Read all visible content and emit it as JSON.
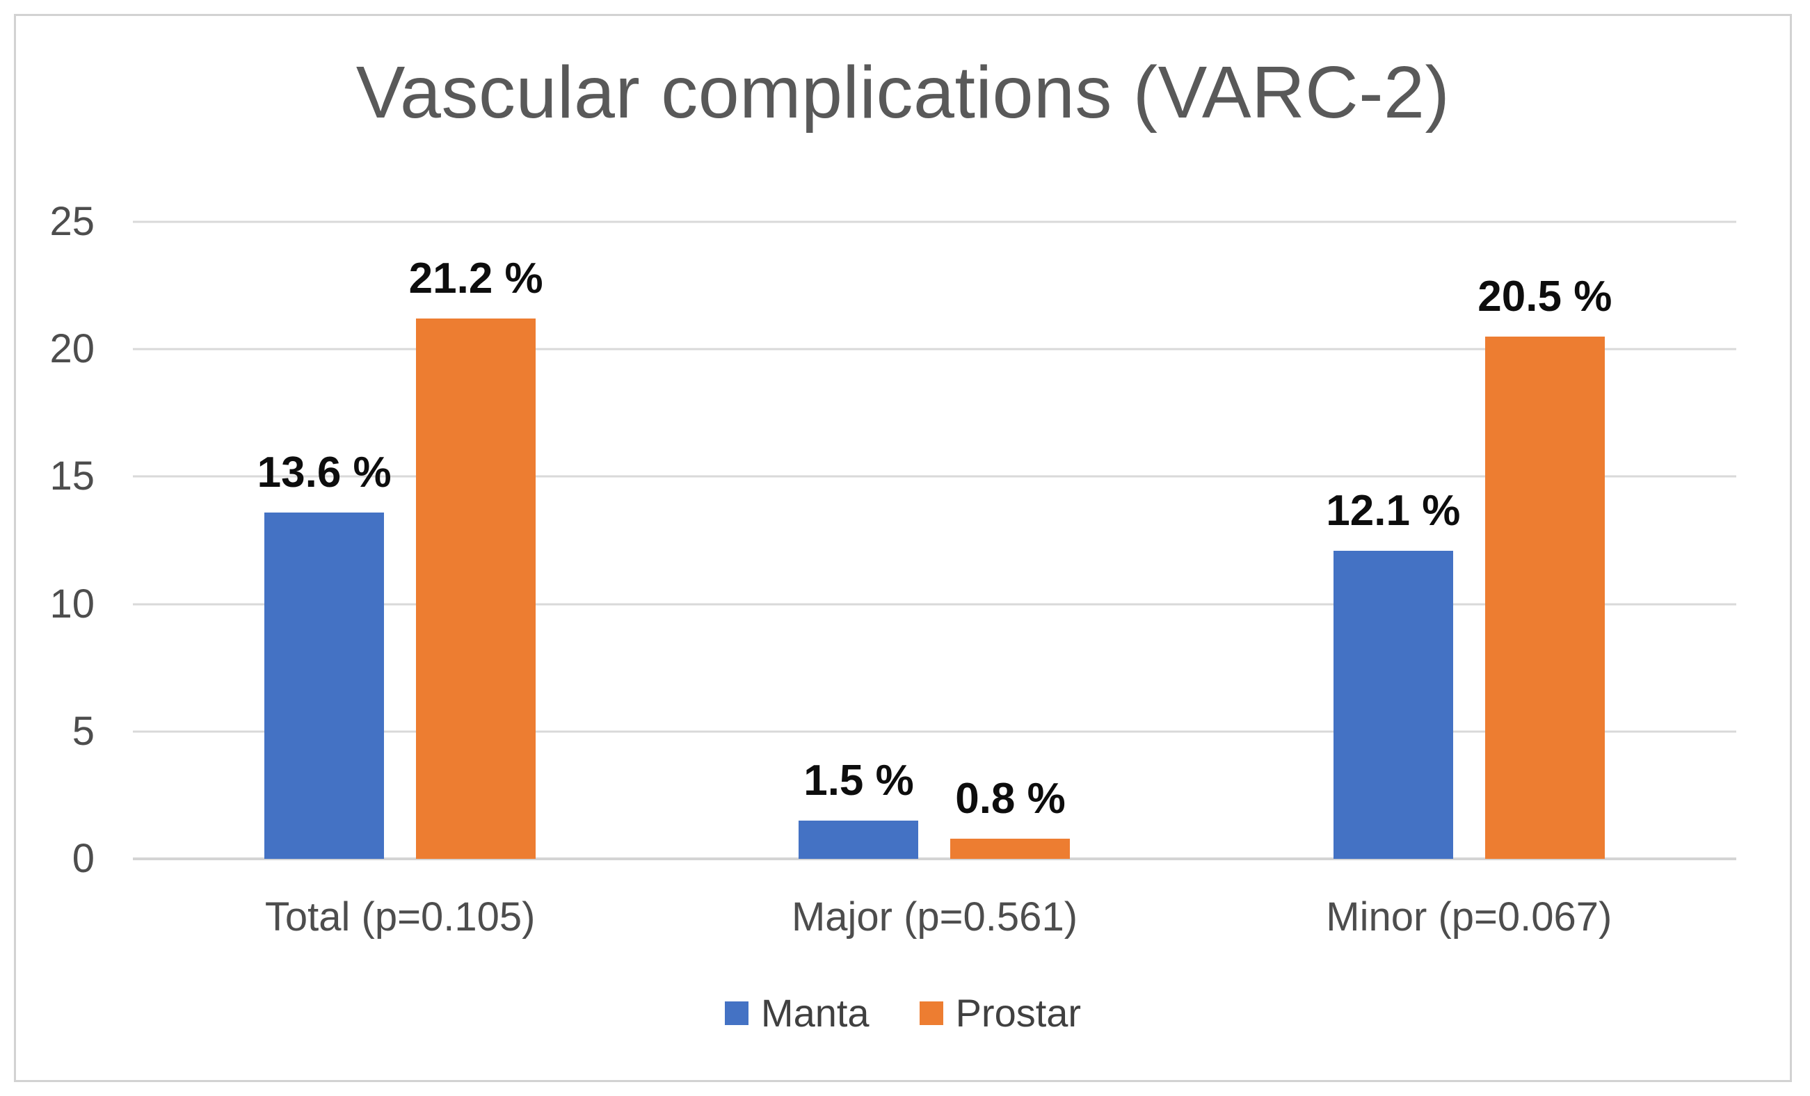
{
  "figure": {
    "title": "Vascular complications (VARC-2)"
  },
  "chart_data": {
    "type": "bar",
    "title": "Vascular complications (VARC-2)",
    "categories": [
      "Total (p=0.105)",
      "Major (p=0.561)",
      "Minor (p=0.067)"
    ],
    "series": [
      {
        "name": "Manta",
        "color": "#4472C4",
        "values": [
          13.6,
          1.5,
          12.1
        ],
        "labels": [
          "13.6 %",
          "1.5 %",
          "12.1 %"
        ]
      },
      {
        "name": "Prostar",
        "color": "#ED7D31",
        "values": [
          21.2,
          0.8,
          20.5
        ],
        "labels": [
          "21.2 %",
          "0.8 %",
          "20.5 %"
        ]
      }
    ],
    "xlabel": "",
    "ylabel": "",
    "ylim": [
      0,
      25
    ],
    "yticks": [
      0,
      5,
      10,
      15,
      20,
      25
    ],
    "grid": true,
    "legend_position": "bottom",
    "colors": {
      "title_text": "#595959",
      "axis_text": "#4d4d4d",
      "data_label_text": "#0d0d0d",
      "gridline": "#d9d9d9",
      "frame_border": "#d2d2d2"
    }
  }
}
